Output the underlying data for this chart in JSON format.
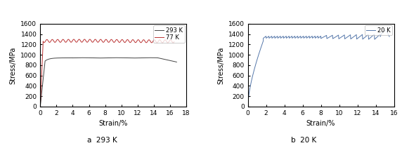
{
  "left_plot": {
    "title": "a  293 K",
    "xlabel": "Strain/%",
    "ylabel": "Stress/MPa",
    "xlim": [
      0,
      18
    ],
    "ylim": [
      0,
      1600
    ],
    "xticks": [
      0,
      2,
      4,
      6,
      8,
      10,
      12,
      14,
      16,
      18
    ],
    "yticks": [
      0,
      200,
      400,
      600,
      800,
      1000,
      1200,
      1400,
      1600
    ],
    "legend_293K": "293 K",
    "legend_77K": "77 K",
    "color_293K": "#444444",
    "color_77K": "#bb3333"
  },
  "right_plot": {
    "title": "b  20 K",
    "xlabel": "Strain/%",
    "ylabel": "Stress/MPa",
    "xlim": [
      0,
      16
    ],
    "ylim": [
      0,
      1600
    ],
    "xticks": [
      0,
      2,
      4,
      6,
      8,
      10,
      12,
      14,
      16
    ],
    "yticks": [
      0,
      200,
      400,
      600,
      800,
      1000,
      1200,
      1400,
      1600
    ],
    "legend_20K": "20 K",
    "color_20K": "#5577aa"
  },
  "background_color": "#ffffff",
  "fig_background": "#ffffff"
}
